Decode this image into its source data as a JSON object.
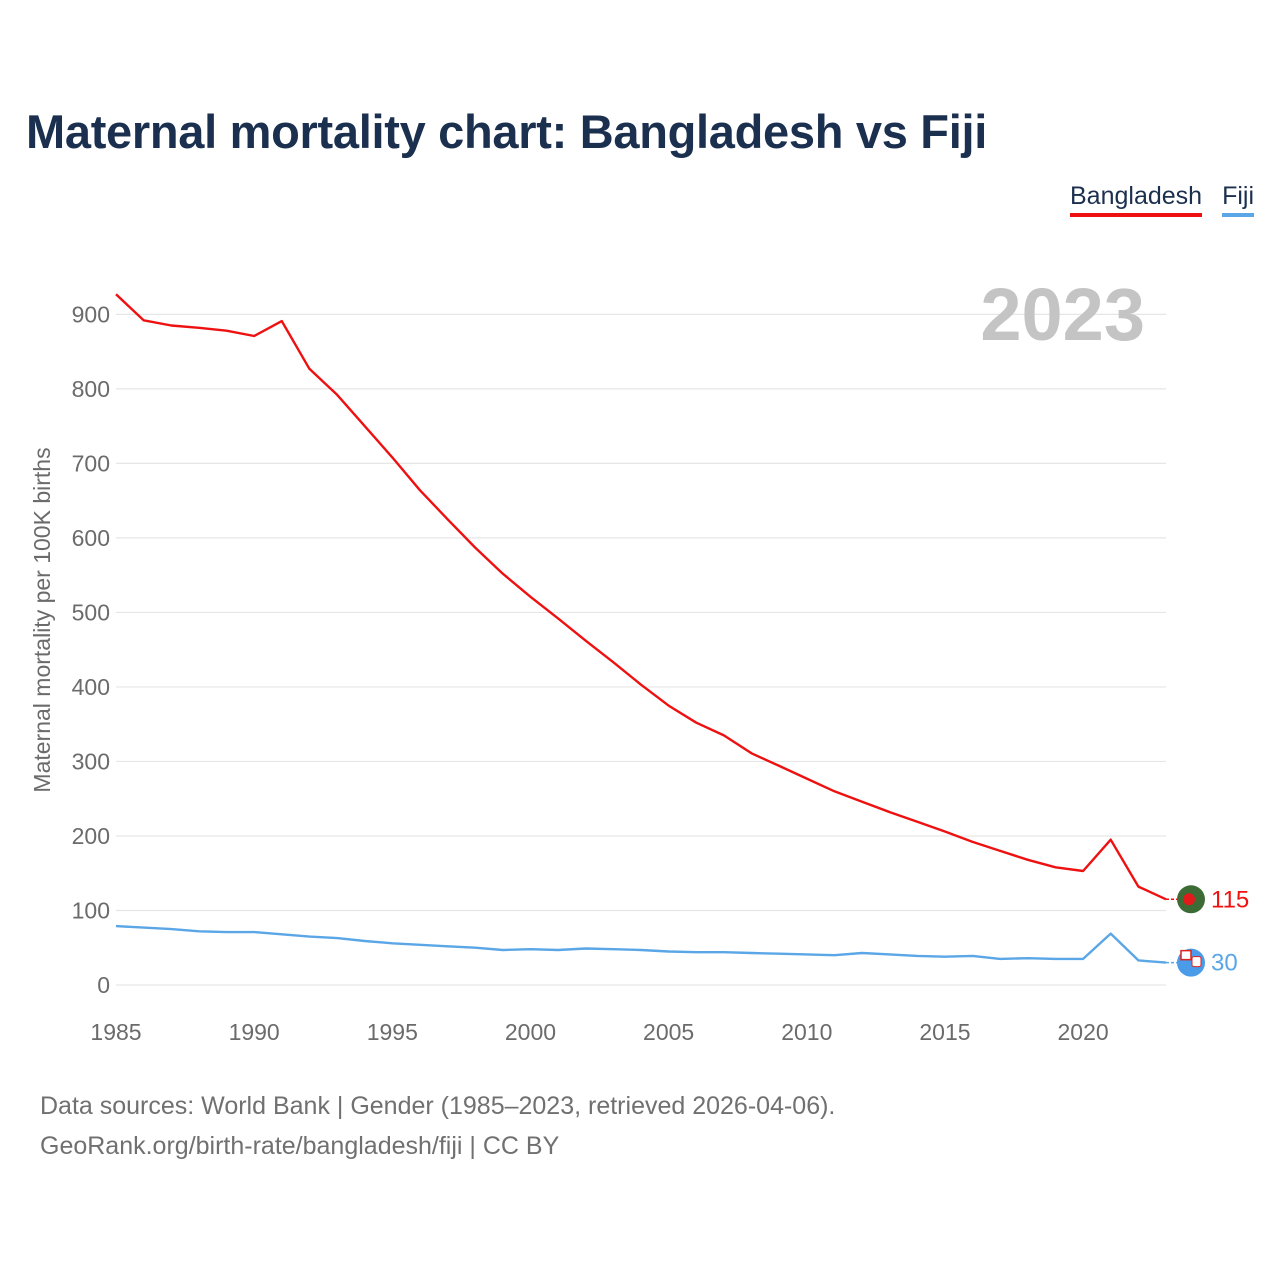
{
  "title": "Maternal mortality chart: Bangladesh vs Fiji",
  "legend": [
    {
      "label": "Bangladesh",
      "color": "#ee1111"
    },
    {
      "label": "Fiji",
      "color": "#5aa6e6"
    }
  ],
  "year_badge": "2023",
  "source": {
    "line1": "Data sources: World Bank | Gender (1985–2023, retrieved 2026-04-06).",
    "line2": "GeoRank.org/birth-rate/bangladesh/fiji | CC BY"
  },
  "colors": {
    "grid": "#e6e6e6",
    "axis_text": "#6b6b6b",
    "badge": "#c4c4c4"
  },
  "chart_data": {
    "type": "line",
    "title": "Maternal mortality chart: Bangladesh vs Fiji",
    "xlabel": "",
    "ylabel": "Maternal mortality per 100K births",
    "xlim": [
      1985,
      2023
    ],
    "ylim": [
      0,
      930
    ],
    "x_ticks": [
      1985,
      1990,
      1995,
      2000,
      2005,
      2010,
      2015,
      2020
    ],
    "y_ticks": [
      0,
      100,
      200,
      300,
      400,
      500,
      600,
      700,
      800,
      900
    ],
    "x": [
      1985,
      1986,
      1987,
      1988,
      1989,
      1990,
      1991,
      1992,
      1993,
      1994,
      1995,
      1996,
      1997,
      1998,
      1999,
      2000,
      2001,
      2002,
      2003,
      2004,
      2005,
      2006,
      2007,
      2008,
      2009,
      2010,
      2011,
      2012,
      2013,
      2014,
      2015,
      2016,
      2017,
      2018,
      2019,
      2020,
      2021,
      2022,
      2023
    ],
    "series": [
      {
        "name": "Bangladesh",
        "color": "#ee1111",
        "end_label": "115",
        "values": [
          927,
          892,
          885,
          882,
          878,
          871,
          891,
          827,
          792,
          750,
          708,
          664,
          625,
          587,
          552,
          521,
          492,
          462,
          433,
          403,
          375,
          352,
          335,
          311,
          294,
          277,
          260,
          246,
          232,
          219,
          206,
          192,
          180,
          168,
          158,
          153,
          195,
          132,
          115
        ]
      },
      {
        "name": "Fiji",
        "color": "#5aa6e6",
        "end_label": "30",
        "values": [
          79,
          77,
          75,
          72,
          71,
          71,
          68,
          65,
          63,
          59,
          56,
          54,
          52,
          50,
          47,
          48,
          47,
          49,
          48,
          47,
          45,
          44,
          44,
          43,
          42,
          41,
          40,
          43,
          41,
          39,
          38,
          39,
          35,
          36,
          35,
          35,
          69,
          33,
          30
        ]
      }
    ]
  }
}
